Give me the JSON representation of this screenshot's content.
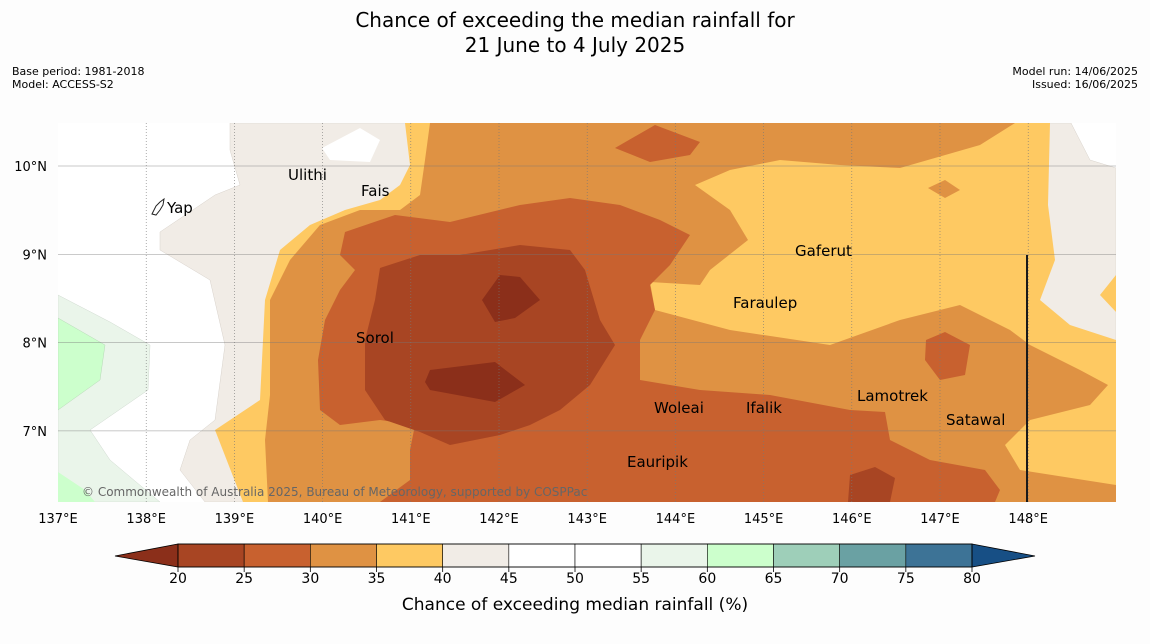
{
  "title": {
    "line1": "Chance of exceeding the median rainfall for",
    "line2": "21 June to 4 July 2025"
  },
  "meta": {
    "base_period": "Base period: 1981-2018",
    "model": "Model: ACCESS-S2",
    "model_run": "Model run: 14/06/2025",
    "issued": "Issued: 16/06/2025"
  },
  "map": {
    "lon_labels": [
      "137°E",
      "138°E",
      "139°E",
      "140°E",
      "141°E",
      "142°E",
      "143°E",
      "144°E",
      "145°E",
      "146°E",
      "147°E",
      "148°E"
    ],
    "lat_labels": [
      "10°N",
      "9°N",
      "8°N",
      "7°N"
    ],
    "places": {
      "yap": "Yap",
      "ulithi": "Ulithi",
      "fais": "Fais",
      "gaferut": "Gaferut",
      "faraulep": "Faraulep",
      "sorol": "Sorol",
      "woleai": "Woleai",
      "ifalik": "Ifalik",
      "lamotrek": "Lamotrek",
      "satawal": "Satawal",
      "eauripik": "Eauripik"
    },
    "copyright": "© Commonwealth of Australia 2025, Bureau of Meteorology, supported by COSPPac"
  },
  "colorbar": {
    "ticks": [
      "20",
      "25",
      "30",
      "35",
      "40",
      "45",
      "50",
      "55",
      "60",
      "65",
      "70",
      "75",
      "80"
    ],
    "label": "Chance of exceeding median rainfall (%)",
    "colors": [
      "#a84523",
      "#c8612f",
      "#df9243",
      "#fec962",
      "#f1ece6",
      "#ffffff",
      "#ffffff",
      "#eaf5ea",
      "#ccffcc",
      "#9ecfb9",
      "#6aa1a3",
      "#3d7396"
    ],
    "low_extend_color": "#8b2f1a",
    "high_extend_color": "#174f85"
  }
}
